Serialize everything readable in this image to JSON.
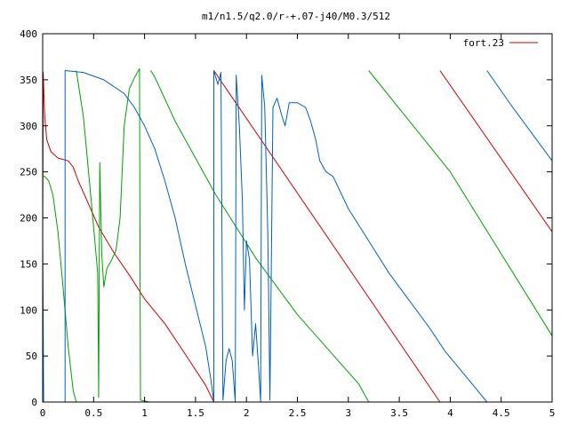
{
  "chart_data": {
    "type": "line",
    "title": "m1/n1.5/q2.0/r-+.07-j40/M0.3/512",
    "xlabel": "",
    "ylabel": "",
    "xlim": [
      0,
      5
    ],
    "ylim": [
      0,
      400
    ],
    "x_ticks": [
      "0",
      "0.5",
      "1",
      "1.5",
      "2",
      "2.5",
      "3",
      "3.5",
      "4",
      "4.5",
      "5"
    ],
    "y_ticks": [
      "0",
      "50",
      "100",
      "150",
      "200",
      "250",
      "300",
      "350",
      "400"
    ],
    "grid": false,
    "legend_position": "top-right",
    "legend": [
      {
        "label": "fort.23",
        "color": "#cc0000"
      }
    ],
    "series": [
      {
        "color": "#cc0000",
        "points": [
          [
            0,
            170
          ],
          [
            0.005,
            358
          ],
          [
            0.02,
            310
          ],
          [
            0.04,
            285
          ],
          [
            0.08,
            272
          ],
          [
            0.15,
            265
          ],
          [
            0.25,
            262
          ],
          [
            0.3,
            255
          ],
          [
            0.35,
            240
          ],
          [
            0.45,
            215
          ],
          [
            0.55,
            190
          ],
          [
            0.7,
            162
          ],
          [
            0.85,
            138
          ],
          [
            1.0,
            112
          ],
          [
            1.2,
            85
          ],
          [
            1.4,
            52
          ],
          [
            1.6,
            18
          ],
          [
            1.68,
            0
          ],
          null,
          [
            1.68,
            360
          ],
          [
            3.9,
            0
          ],
          null,
          [
            3.9,
            360
          ],
          [
            5.0,
            185
          ]
        ]
      },
      {
        "color": "#00a000",
        "points": [
          [
            0,
            0
          ],
          [
            0,
            245
          ],
          [
            0.02,
            245
          ],
          [
            0.06,
            240
          ],
          [
            0.1,
            225
          ],
          [
            0.15,
            185
          ],
          [
            0.2,
            125
          ],
          [
            0.25,
            60
          ],
          [
            0.3,
            12
          ],
          [
            0.33,
            0
          ],
          null,
          [
            0.33,
            360
          ],
          [
            0.4,
            310
          ],
          [
            0.45,
            250
          ],
          [
            0.5,
            190
          ],
          [
            0.54,
            140
          ],
          [
            0.55,
            5
          ],
          [
            0.56,
            260
          ],
          [
            0.58,
            160
          ],
          [
            0.6,
            125
          ],
          [
            0.63,
            145
          ],
          [
            0.68,
            155
          ],
          [
            0.72,
            165
          ],
          [
            0.76,
            200
          ],
          [
            0.8,
            300
          ],
          [
            0.85,
            340
          ],
          [
            0.9,
            352
          ],
          [
            0.95,
            362
          ],
          [
            0.96,
            2
          ],
          [
            1.05,
            0
          ],
          null,
          [
            1.06,
            360
          ],
          [
            1.1,
            353
          ],
          [
            1.3,
            305
          ],
          [
            1.5,
            265
          ],
          [
            1.7,
            225
          ],
          [
            1.9,
            190
          ],
          [
            2.1,
            155
          ],
          [
            2.3,
            125
          ],
          [
            2.5,
            95
          ],
          [
            2.7,
            70
          ],
          [
            2.9,
            45
          ],
          [
            3.1,
            20
          ],
          [
            3.2,
            0
          ],
          null,
          [
            3.2,
            360
          ],
          [
            4.0,
            250
          ],
          [
            5.0,
            72
          ]
        ]
      },
      {
        "color": "#0060c0",
        "points": [
          [
            0,
            0
          ],
          [
            0,
            185
          ],
          [
            0.01,
            0
          ],
          [
            0.18,
            0
          ],
          null,
          [
            0.22,
            0
          ],
          [
            0.22,
            360
          ],
          [
            0.4,
            358
          ],
          [
            0.6,
            350
          ],
          [
            0.8,
            335
          ],
          [
            0.9,
            320
          ],
          [
            1.0,
            300
          ],
          [
            1.1,
            275
          ],
          [
            1.2,
            240
          ],
          [
            1.3,
            200
          ],
          [
            1.4,
            150
          ],
          [
            1.5,
            105
          ],
          [
            1.6,
            60
          ],
          [
            1.65,
            25
          ],
          [
            1.68,
            0
          ],
          [
            1.68,
            360
          ],
          [
            1.72,
            345
          ],
          [
            1.75,
            358
          ],
          [
            1.77,
            2
          ],
          [
            1.8,
            45
          ],
          [
            1.83,
            58
          ],
          [
            1.86,
            45
          ],
          [
            1.89,
            0
          ],
          [
            1.9,
            355
          ],
          [
            1.93,
            300
          ],
          [
            1.96,
            220
          ],
          [
            1.98,
            100
          ],
          [
            2.0,
            175
          ],
          [
            2.03,
            155
          ],
          [
            2.06,
            50
          ],
          [
            2.09,
            85
          ],
          [
            2.12,
            35
          ],
          [
            2.14,
            0
          ],
          [
            2.15,
            355
          ],
          [
            2.18,
            320
          ],
          [
            2.21,
            180
          ],
          [
            2.23,
            2
          ],
          [
            2.26,
            320
          ],
          [
            2.3,
            330
          ],
          [
            2.35,
            310
          ],
          [
            2.38,
            300
          ],
          [
            2.42,
            325
          ],
          [
            2.5,
            325
          ],
          [
            2.58,
            320
          ],
          [
            2.63,
            305
          ],
          [
            2.68,
            285
          ],
          [
            2.72,
            262
          ],
          [
            2.78,
            250
          ],
          [
            2.85,
            245
          ],
          [
            3.0,
            210
          ],
          [
            3.2,
            175
          ],
          [
            3.4,
            140
          ],
          [
            3.6,
            110
          ],
          [
            3.8,
            80
          ],
          [
            3.95,
            55
          ],
          [
            4.1,
            35
          ],
          [
            4.25,
            15
          ],
          [
            4.36,
            0
          ],
          null,
          [
            4.36,
            360
          ],
          [
            4.6,
            322
          ],
          [
            4.8,
            292
          ],
          [
            5.0,
            262
          ]
        ]
      }
    ]
  }
}
